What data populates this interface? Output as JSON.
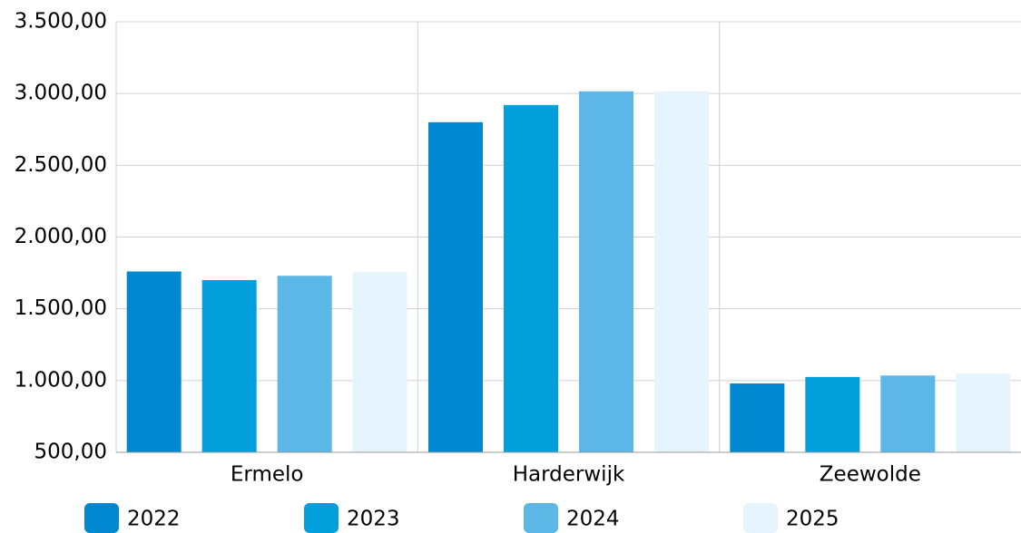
{
  "chart_data": {
    "type": "bar",
    "categories": [
      "Ermelo",
      "Harderwijk",
      "Zeewolde"
    ],
    "series": [
      {
        "name": "2022",
        "color": "#0288d1",
        "values": [
          1760,
          2800,
          980
        ]
      },
      {
        "name": "2023",
        "color": "#039fdb",
        "values": [
          1700,
          2920,
          1025
        ]
      },
      {
        "name": "2024",
        "color": "#5cb6e6",
        "values": [
          1730,
          3015,
          1035
        ]
      },
      {
        "name": "2025",
        "color": "#e6f4fd",
        "values": [
          1755,
          3015,
          1050
        ]
      }
    ],
    "ylim": [
      500,
      3500
    ],
    "yticks": [
      {
        "value": 500,
        "label": "500,00"
      },
      {
        "value": 1000,
        "label": "1.000,00"
      },
      {
        "value": 1500,
        "label": "1.500,00"
      },
      {
        "value": 2000,
        "label": "2.000,00"
      },
      {
        "value": 2500,
        "label": "2.500,00"
      },
      {
        "value": 3000,
        "label": "3.000,00"
      },
      {
        "value": 3500,
        "label": "3.500,00"
      }
    ],
    "grid": true,
    "legend": "bottom"
  }
}
